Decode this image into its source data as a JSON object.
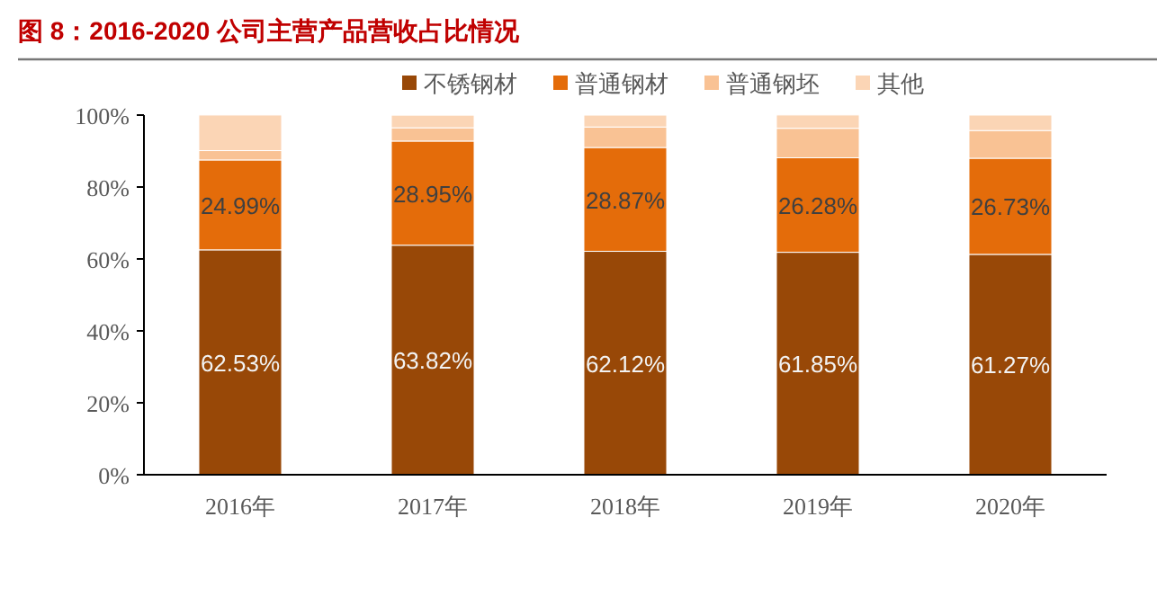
{
  "chart_data": {
    "type": "bar",
    "title": "图 8：2016-2020 公司主营产品营收占比情况",
    "categories": [
      "2016年",
      "2017年",
      "2018年",
      "2019年",
      "2020年"
    ],
    "stacked": true,
    "series": [
      {
        "name": "不锈钢材",
        "color": "#984807",
        "values": [
          62.53,
          63.82,
          62.12,
          61.85,
          61.27
        ],
        "value_labels": [
          "62.53%",
          "63.82%",
          "62.12%",
          "61.85%",
          "61.27%"
        ]
      },
      {
        "name": "普通钢材",
        "color": "#e46c0a",
        "values": [
          24.99,
          28.95,
          28.87,
          26.28,
          26.73
        ],
        "value_labels": [
          "24.99%",
          "28.95%",
          "28.87%",
          "26.28%",
          "26.73%"
        ]
      },
      {
        "name": "普通钢坯",
        "color": "#f9c294",
        "values": [
          2.6,
          3.7,
          5.7,
          8.2,
          7.7
        ]
      },
      {
        "name": "其他",
        "color": "#fbd5b5",
        "values": [
          9.9,
          3.5,
          3.3,
          3.7,
          4.3
        ]
      }
    ],
    "ylim": [
      0,
      100
    ],
    "yticks": [
      {
        "value": 0,
        "label": "0%"
      },
      {
        "value": 20,
        "label": "20%"
      },
      {
        "value": 40,
        "label": "40%"
      },
      {
        "value": 60,
        "label": "60%"
      },
      {
        "value": 80,
        "label": "80%"
      },
      {
        "value": 100,
        "label": "100%"
      }
    ],
    "grid": false,
    "legend": "top"
  }
}
